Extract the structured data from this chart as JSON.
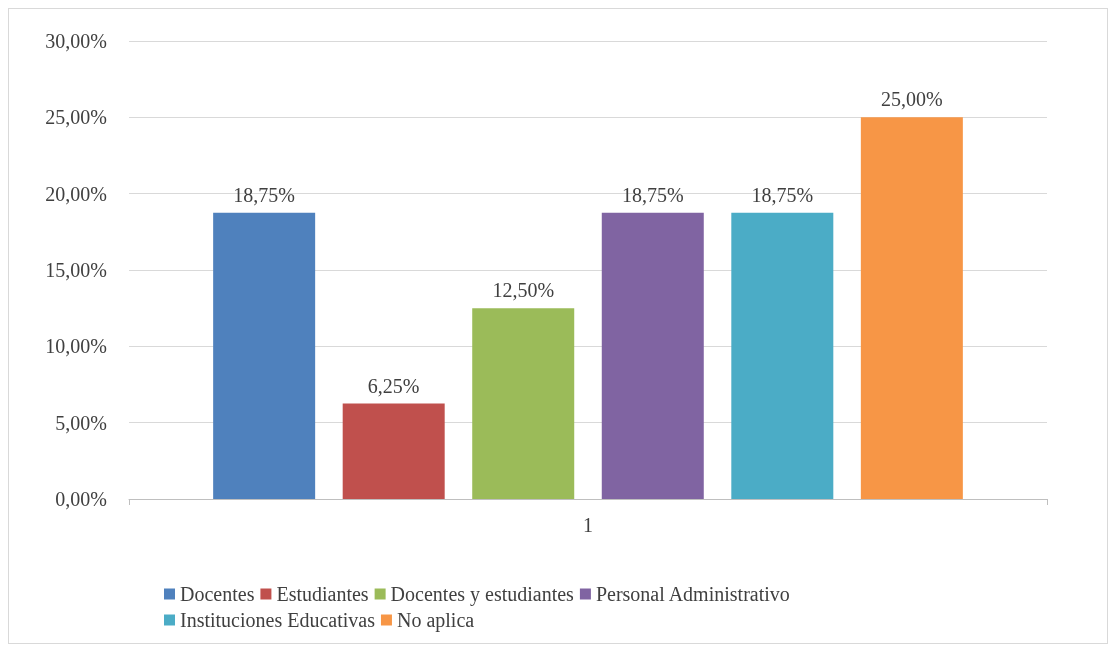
{
  "chart_data": {
    "type": "bar",
    "categories": [
      "1"
    ],
    "series": [
      {
        "name": "Docentes",
        "color": "#4f81bd",
        "values": [
          18.75
        ],
        "value_labels": [
          "18,75%"
        ]
      },
      {
        "name": "Estudiantes",
        "color": "#c0504d",
        "values": [
          6.25
        ],
        "value_labels": [
          "6,25%"
        ]
      },
      {
        "name": "Docentes y estudiantes",
        "color": "#9bbb59",
        "values": [
          12.5
        ],
        "value_labels": [
          "12,50%"
        ]
      },
      {
        "name": "Personal Administrativo",
        "color": "#8064a2",
        "values": [
          18.75
        ],
        "value_labels": [
          "18,75%"
        ]
      },
      {
        "name": "Instituciones Educativas",
        "color": "#4bacc6",
        "values": [
          18.75
        ],
        "value_labels": [
          "18,75%"
        ]
      },
      {
        "name": "No aplica",
        "color": "#f79646",
        "values": [
          25
        ],
        "value_labels": [
          "25,00%"
        ]
      }
    ],
    "ylim": [
      0,
      30
    ],
    "yticks": [
      {
        "value": 0,
        "label": "0,00%"
      },
      {
        "value": 5,
        "label": "5,00%"
      },
      {
        "value": 10,
        "label": "10,00%"
      },
      {
        "value": 15,
        "label": "15,00%"
      },
      {
        "value": 20,
        "label": "20,00%"
      },
      {
        "value": 25,
        "label": "25,00%"
      },
      {
        "value": 30,
        "label": "30,00%"
      }
    ],
    "grid": "y",
    "legend": "bottom"
  }
}
